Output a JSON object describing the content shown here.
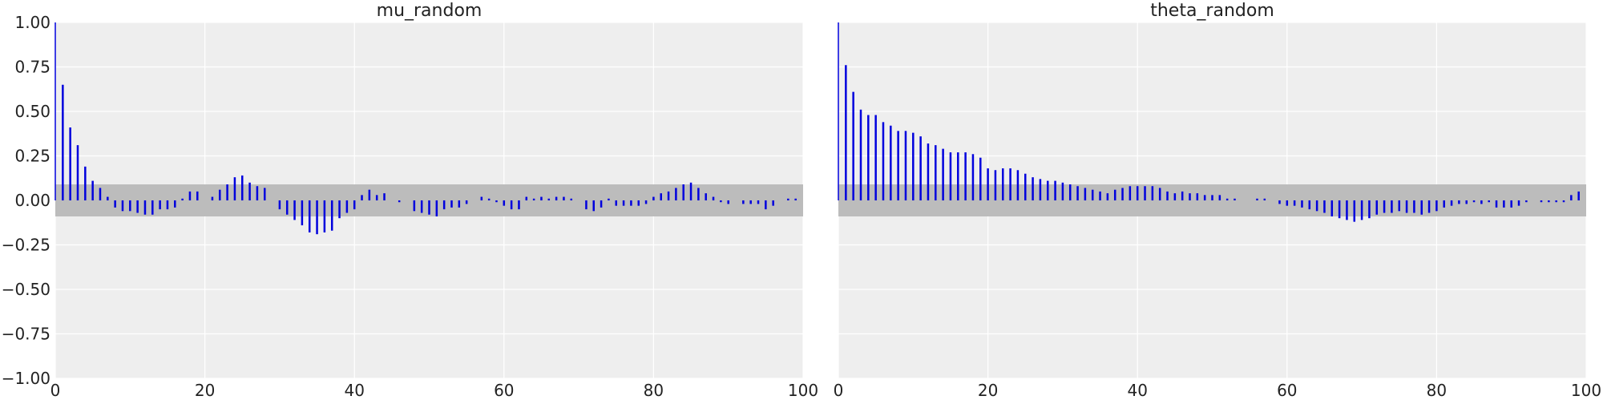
{
  "chart_data": [
    {
      "type": "bar",
      "title": "mu_random",
      "xlim": [
        0,
        100
      ],
      "ylim": [
        -1,
        1
      ],
      "x_ticks": [
        "0",
        "20",
        "40",
        "60",
        "80",
        "100"
      ],
      "x_tick_values": [
        0,
        20,
        40,
        60,
        80,
        100
      ],
      "y_ticks": [
        "1.00",
        "0.75",
        "0.50",
        "0.25",
        "0.00",
        "−0.25",
        "−0.50",
        "−0.75",
        "−1.00"
      ],
      "y_tick_values": [
        1.0,
        0.75,
        0.5,
        0.25,
        0.0,
        -0.25,
        -0.5,
        -0.75,
        -1.0
      ],
      "confidence_band": [
        -0.09,
        0.09
      ],
      "grid": true,
      "x": [
        0,
        1,
        2,
        3,
        4,
        5,
        6,
        7,
        8,
        9,
        10,
        11,
        12,
        13,
        14,
        15,
        16,
        17,
        18,
        19,
        20,
        21,
        22,
        23,
        24,
        25,
        26,
        27,
        28,
        29,
        30,
        31,
        32,
        33,
        34,
        35,
        36,
        37,
        38,
        39,
        40,
        41,
        42,
        43,
        44,
        45,
        46,
        47,
        48,
        49,
        50,
        51,
        52,
        53,
        54,
        55,
        56,
        57,
        58,
        59,
        60,
        61,
        62,
        63,
        64,
        65,
        66,
        67,
        68,
        69,
        70,
        71,
        72,
        73,
        74,
        75,
        76,
        77,
        78,
        79,
        80,
        81,
        82,
        83,
        84,
        85,
        86,
        87,
        88,
        89,
        90,
        91,
        92,
        93,
        94,
        95,
        96,
        97,
        98,
        99
      ],
      "values": [
        1.0,
        0.65,
        0.41,
        0.31,
        0.19,
        0.11,
        0.07,
        0.02,
        -0.04,
        -0.06,
        -0.06,
        -0.07,
        -0.08,
        -0.08,
        -0.05,
        -0.05,
        -0.04,
        0.01,
        0.05,
        0.05,
        0.0,
        0.02,
        0.06,
        0.09,
        0.13,
        0.14,
        0.1,
        0.08,
        0.07,
        0.0,
        -0.05,
        -0.08,
        -0.11,
        -0.14,
        -0.18,
        -0.19,
        -0.18,
        -0.17,
        -0.1,
        -0.07,
        -0.05,
        0.03,
        0.06,
        0.03,
        0.04,
        0.0,
        -0.01,
        0.0,
        -0.06,
        -0.07,
        -0.08,
        -0.09,
        -0.05,
        -0.04,
        -0.04,
        -0.02,
        0.0,
        0.02,
        0.01,
        -0.01,
        -0.03,
        -0.05,
        -0.05,
        0.02,
        0.01,
        0.02,
        0.01,
        0.02,
        0.02,
        0.01,
        0.0,
        -0.05,
        -0.06,
        -0.04,
        0.01,
        -0.03,
        -0.03,
        -0.03,
        -0.03,
        -0.02,
        0.02,
        0.04,
        0.05,
        0.07,
        0.09,
        0.1,
        0.07,
        0.04,
        0.02,
        -0.01,
        -0.02,
        0.0,
        -0.02,
        -0.02,
        -0.02,
        -0.05,
        -0.03,
        0.0,
        0.01,
        0.01
      ]
    },
    {
      "type": "bar",
      "title": "theta_random",
      "xlim": [
        0,
        100
      ],
      "ylim": [
        -1,
        1
      ],
      "x_ticks": [
        "0",
        "20",
        "40",
        "60",
        "80",
        "100"
      ],
      "x_tick_values": [
        0,
        20,
        40,
        60,
        80,
        100
      ],
      "y_ticks": [],
      "y_tick_values": [],
      "confidence_band": [
        -0.09,
        0.09
      ],
      "grid": true,
      "x": [
        0,
        1,
        2,
        3,
        4,
        5,
        6,
        7,
        8,
        9,
        10,
        11,
        12,
        13,
        14,
        15,
        16,
        17,
        18,
        19,
        20,
        21,
        22,
        23,
        24,
        25,
        26,
        27,
        28,
        29,
        30,
        31,
        32,
        33,
        34,
        35,
        36,
        37,
        38,
        39,
        40,
        41,
        42,
        43,
        44,
        45,
        46,
        47,
        48,
        49,
        50,
        51,
        52,
        53,
        54,
        55,
        56,
        57,
        58,
        59,
        60,
        61,
        62,
        63,
        64,
        65,
        66,
        67,
        68,
        69,
        70,
        71,
        72,
        73,
        74,
        75,
        76,
        77,
        78,
        79,
        80,
        81,
        82,
        83,
        84,
        85,
        86,
        87,
        88,
        89,
        90,
        91,
        92,
        93,
        94,
        95,
        96,
        97,
        98,
        99
      ],
      "values": [
        1.0,
        0.76,
        0.61,
        0.51,
        0.48,
        0.48,
        0.44,
        0.42,
        0.39,
        0.39,
        0.38,
        0.36,
        0.32,
        0.31,
        0.29,
        0.27,
        0.27,
        0.27,
        0.26,
        0.24,
        0.18,
        0.17,
        0.18,
        0.18,
        0.17,
        0.15,
        0.13,
        0.12,
        0.11,
        0.11,
        0.1,
        0.09,
        0.08,
        0.07,
        0.06,
        0.05,
        0.04,
        0.06,
        0.07,
        0.08,
        0.08,
        0.08,
        0.08,
        0.07,
        0.05,
        0.04,
        0.05,
        0.04,
        0.04,
        0.03,
        0.03,
        0.03,
        0.01,
        0.01,
        0.0,
        0.0,
        0.01,
        0.01,
        0.0,
        -0.02,
        -0.03,
        -0.03,
        -0.04,
        -0.05,
        -0.06,
        -0.07,
        -0.09,
        -0.1,
        -0.11,
        -0.12,
        -0.11,
        -0.1,
        -0.08,
        -0.07,
        -0.07,
        -0.06,
        -0.07,
        -0.07,
        -0.08,
        -0.07,
        -0.06,
        -0.04,
        -0.03,
        -0.02,
        -0.02,
        -0.01,
        -0.02,
        -0.01,
        -0.04,
        -0.04,
        -0.04,
        -0.03,
        -0.01,
        0.0,
        -0.01,
        -0.01,
        -0.01,
        -0.01,
        0.03,
        0.05
      ]
    }
  ],
  "colors": {
    "figure_bg": "#ffffff",
    "axes_bg": "#eeeeee",
    "grid": "#ffffff",
    "bar": "#0000dd",
    "band": "#bcbcbc",
    "text": "#222222"
  }
}
